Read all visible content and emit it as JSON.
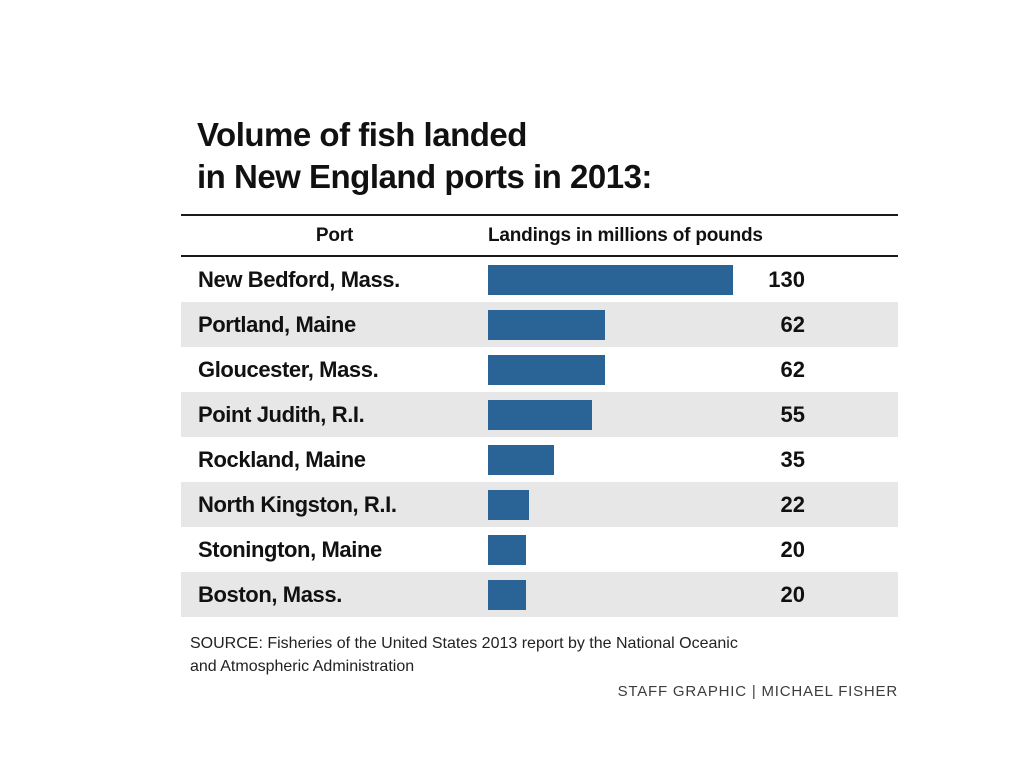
{
  "title": {
    "line1": "Volume of fish landed",
    "line2": "in New England ports in 2013:"
  },
  "table_headers": {
    "port": "Port",
    "landings": "Landings in millions of pounds"
  },
  "chart_data": {
    "type": "bar",
    "orientation": "horizontal",
    "title": "Volume of fish landed in New England ports in 2013:",
    "xlabel": "Landings in millions of pounds",
    "ylabel": "Port",
    "xlim": [
      0,
      130
    ],
    "grid": false,
    "legend": "none",
    "bar_color": "#2a6496",
    "stripe_color": "#e7e7e8",
    "categories": [
      "New Bedford, Mass.",
      "Portland, Maine",
      "Gloucester, Mass.",
      "Point Judith, R.I.",
      "Rockland, Maine",
      "North Kingston, R.I.",
      "Stonington, Maine",
      "Boston, Mass."
    ],
    "values": [
      130,
      62,
      62,
      55,
      35,
      22,
      20,
      20
    ],
    "rows": [
      {
        "port": "New Bedford, Mass.",
        "value": "130",
        "num": 130
      },
      {
        "port": "Portland, Maine",
        "value": "62",
        "num": 62
      },
      {
        "port": "Gloucester, Mass.",
        "value": "62",
        "num": 62
      },
      {
        "port": "Point Judith, R.I.",
        "value": "55",
        "num": 55
      },
      {
        "port": "Rockland, Maine",
        "value": "35",
        "num": 35
      },
      {
        "port": "North Kingston, R.I.",
        "value": "22",
        "num": 22
      },
      {
        "port": "Stonington, Maine",
        "value": "20",
        "num": 20
      },
      {
        "port": "Boston, Mass.",
        "value": "20",
        "num": 20
      }
    ]
  },
  "source": {
    "line1": "SOURCE: Fisheries of the United States 2013 report by the National Oceanic",
    "line2": "and Atmospheric Administration"
  },
  "credit": "STAFF GRAPHIC | MICHAEL FISHER"
}
